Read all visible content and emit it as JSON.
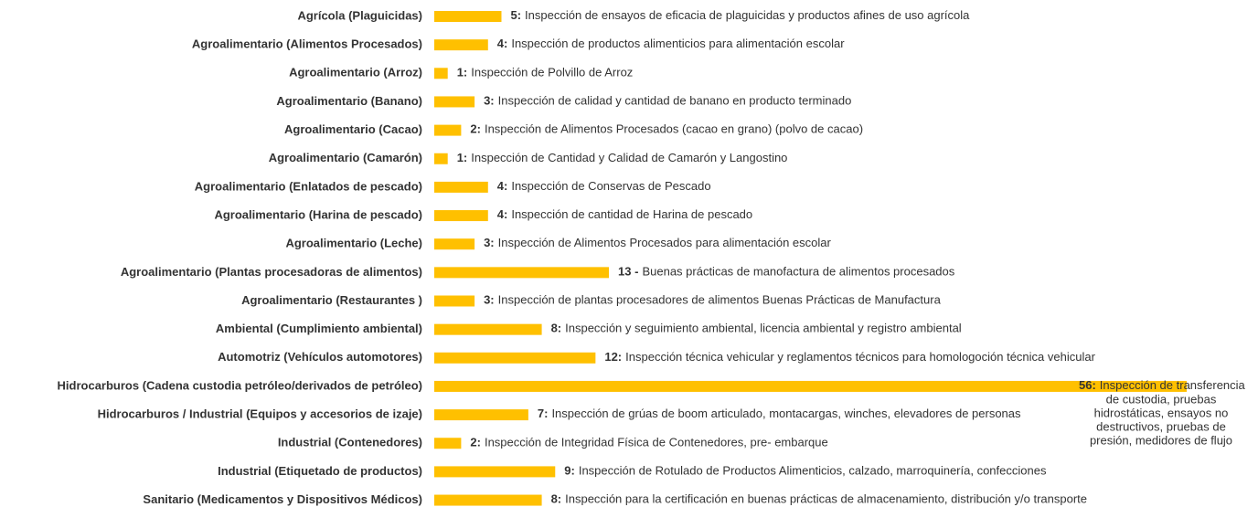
{
  "chart_data": {
    "type": "barh",
    "color": "#FFC000",
    "xlim": [
      0,
      56
    ],
    "categories": [
      "Agrícola (Plaguicidas)",
      "Agroalimentario (Alimentos Procesados)",
      "Agroalimentario (Arroz)",
      "Agroalimentario (Banano)",
      "Agroalimentario (Cacao)",
      "Agroalimentario (Camarón)",
      "Agroalimentario (Enlatados de pescado)",
      "Agroalimentario (Harina de pescado)",
      "Agroalimentario (Leche)",
      "Agroalimentario (Plantas procesadoras de alimentos)",
      "Agroalimentario (Restaurantes )",
      "Ambiental (Cumplimiento ambiental)",
      "Automotriz (Vehículos automotores)",
      "Hidrocarburos (Cadena custodia petróleo/derivados de petróleo)",
      "Hidrocarburos / Industrial (Equipos y accesorios de izaje)",
      "Industrial (Contenedores)",
      "Industrial (Etiquetado de productos)",
      "Sanitario (Medicamentos y Dispositivos Médicos)"
    ],
    "values": [
      5,
      4,
      1,
      3,
      2,
      1,
      4,
      4,
      3,
      13,
      3,
      8,
      12,
      56,
      7,
      2,
      9,
      8
    ],
    "value_labels": [
      "5:",
      "4:",
      "1:",
      "3:",
      "2:",
      "1:",
      "4:",
      "4:",
      "3:",
      "13 -",
      "3:",
      "8:",
      "12:",
      "56:",
      "7:",
      "2:",
      "9:",
      "8:"
    ],
    "descriptions": [
      "Inspección de ensayos de eficacia de plaguicidas y productos afines de uso agrícola",
      "Inspección de productos alimenticios para alimentación escolar",
      "Inspección de Polvillo de Arroz",
      "Inspección de calidad y cantidad de banano en producto terminado",
      "Inspección de Alimentos Procesados (cacao en grano) (polvo de cacao)",
      "Inspección de Cantidad y Calidad de Camarón y Langostino",
      "Inspección de Conservas de Pescado",
      "Inspección de cantidad de Harina de pescado",
      "Inspección de Alimentos Procesados  para alimentación escolar",
      "Buenas prácticas de manofactura de alimentos procesados",
      "Inspección de plantas procesadores de alimentos Buenas Prácticas de Manufactura",
      "Inspección y seguimiento ambiental, licencia ambiental y registro ambiental",
      "Inspección técnica vehicular y reglamentos técnicos para homologoción técnica vehicular",
      [
        "Inspección de transferencia",
        "de custodia, pruebas",
        "hidrostáticas, ensayos no",
        "destructivos, pruebas de",
        "presión,  medidores de flujo"
      ],
      "Inspección de grúas de boom articulado, montacargas, winches, elevadores de personas",
      "Inspección de Integridad Física de Contenedores, pre- embarque",
      "Inspección de Rotulado de Productos Alimenticios, calzado, marroquinería, confecciones",
      "Inspección para la certificación en buenas prácticas de almacenamiento, distribución y/o transporte"
    ]
  }
}
